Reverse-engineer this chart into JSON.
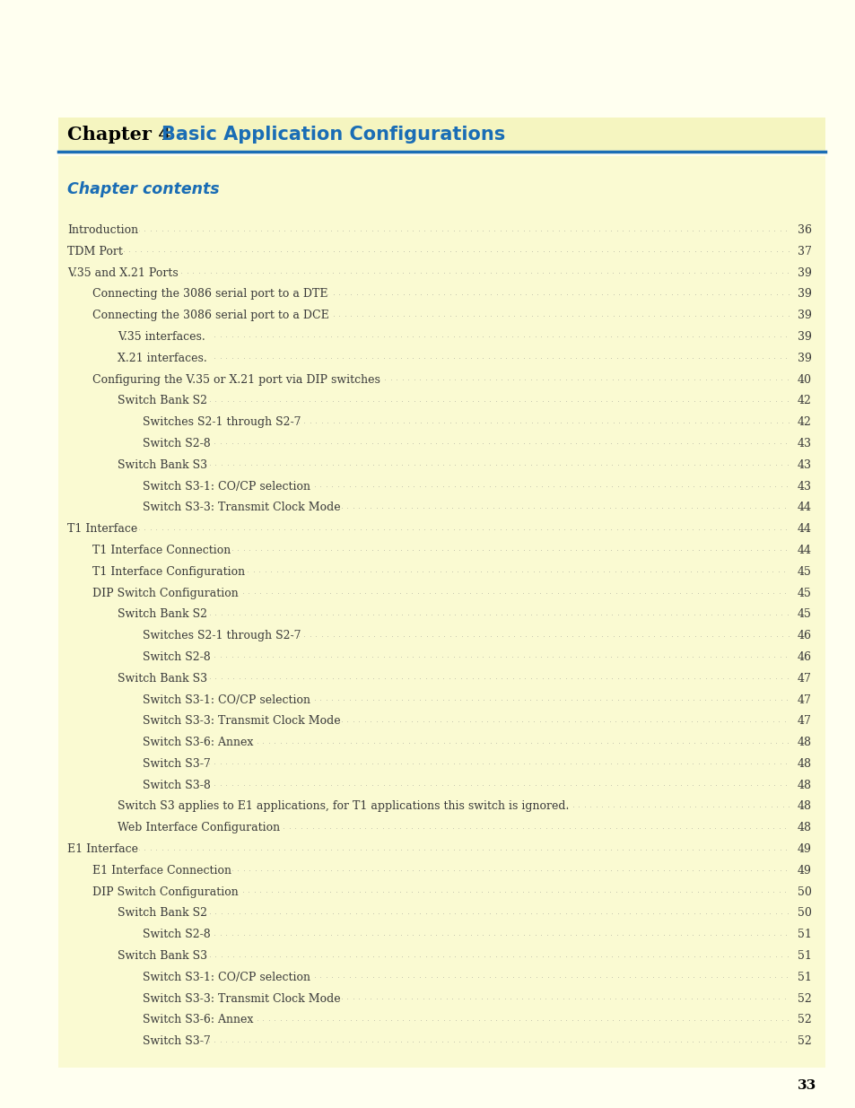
{
  "page_bg": "#fffff0",
  "content_bg": "#fafad2",
  "title_chapter": "Chapter 4",
  "title_main": "Basic Application Configurations",
  "title_color_chapter": "#000000",
  "title_color_main": "#1a6db5",
  "header_bg": "#f5f5c0",
  "header_line_color": "#1a6db5",
  "section_title": "Chapter contents",
  "section_title_color": "#1a6db5",
  "page_number": "33",
  "entries": [
    {
      "text": "Introduction",
      "page": "36",
      "indent": 0
    },
    {
      "text": "TDM Port",
      "page": "37",
      "indent": 0
    },
    {
      "text": "V.35 and X.21 Ports",
      "page": "39",
      "indent": 0
    },
    {
      "text": "Connecting the 3086 serial port to a DTE ",
      "page": "39",
      "indent": 1
    },
    {
      "text": "Connecting the 3086 serial port to a DCE ",
      "page": "39",
      "indent": 1
    },
    {
      "text": "V.35 interfaces.  ",
      "page": "39",
      "indent": 2
    },
    {
      "text": "X.21 interfaces.  ",
      "page": "39",
      "indent": 2
    },
    {
      "text": "Configuring the V.35 or X.21 port via DIP switches  ",
      "page": "40",
      "indent": 1
    },
    {
      "text": "Switch Bank S2  ",
      "page": "42",
      "indent": 2
    },
    {
      "text": "Switches S2-1 through S2-7 ",
      "page": "42",
      "indent": 3
    },
    {
      "text": "Switch S2-8",
      "page": "43",
      "indent": 3
    },
    {
      "text": "Switch Bank S3  ",
      "page": "43",
      "indent": 2
    },
    {
      "text": "Switch S3-1: CO/CP selection ",
      "page": "43",
      "indent": 3
    },
    {
      "text": "Switch S3-3: Transmit Clock Mode ",
      "page": "44",
      "indent": 3
    },
    {
      "text": "T1 Interface",
      "page": "44",
      "indent": 0
    },
    {
      "text": "T1 Interface Connection  ",
      "page": "44",
      "indent": 1
    },
    {
      "text": "T1 Interface Configuration  ",
      "page": "45",
      "indent": 1
    },
    {
      "text": "DIP Switch Configuration  ",
      "page": "45",
      "indent": 1
    },
    {
      "text": "Switch Bank S2  ",
      "page": "45",
      "indent": 2
    },
    {
      "text": "Switches S2-1 through S2-7 ",
      "page": "46",
      "indent": 3
    },
    {
      "text": "Switch S2-8",
      "page": "46",
      "indent": 3
    },
    {
      "text": "Switch Bank S3  ",
      "page": "47",
      "indent": 2
    },
    {
      "text": "Switch S3-1: CO/CP selection ",
      "page": "47",
      "indent": 3
    },
    {
      "text": "Switch S3-3: Transmit Clock Mode ",
      "page": "47",
      "indent": 3
    },
    {
      "text": "Switch S3-6: Annex",
      "page": "48",
      "indent": 3
    },
    {
      "text": "Switch S3-7",
      "page": "48",
      "indent": 3
    },
    {
      "text": "Switch S3-8",
      "page": "48",
      "indent": 3
    },
    {
      "text": "Switch S3 applies to E1 applications, for T1 applications this switch is ignored.  ",
      "page": "48",
      "indent": 2
    },
    {
      "text": "Web Interface Configuration  ",
      "page": "48",
      "indent": 2
    },
    {
      "text": "E1 Interface",
      "page": "49",
      "indent": 0
    },
    {
      "text": "E1 Interface Connection  ",
      "page": "49",
      "indent": 1
    },
    {
      "text": "DIP Switch Configuration  ",
      "page": "50",
      "indent": 1
    },
    {
      "text": "Switch Bank S2  ",
      "page": "50",
      "indent": 2
    },
    {
      "text": "Switch S2-8",
      "page": "51",
      "indent": 3
    },
    {
      "text": "Switch Bank S3  ",
      "page": "51",
      "indent": 2
    },
    {
      "text": "Switch S3-1: CO/CP selection ",
      "page": "51",
      "indent": 3
    },
    {
      "text": "Switch S3-3: Transmit Clock Mode ",
      "page": "52",
      "indent": 3
    },
    {
      "text": "Switch S3-6: Annex",
      "page": "52",
      "indent": 3
    },
    {
      "text": "Switch S3-7",
      "page": "52",
      "indent": 3
    }
  ],
  "text_color": "#3a3a3a",
  "dots_color": "#888888"
}
